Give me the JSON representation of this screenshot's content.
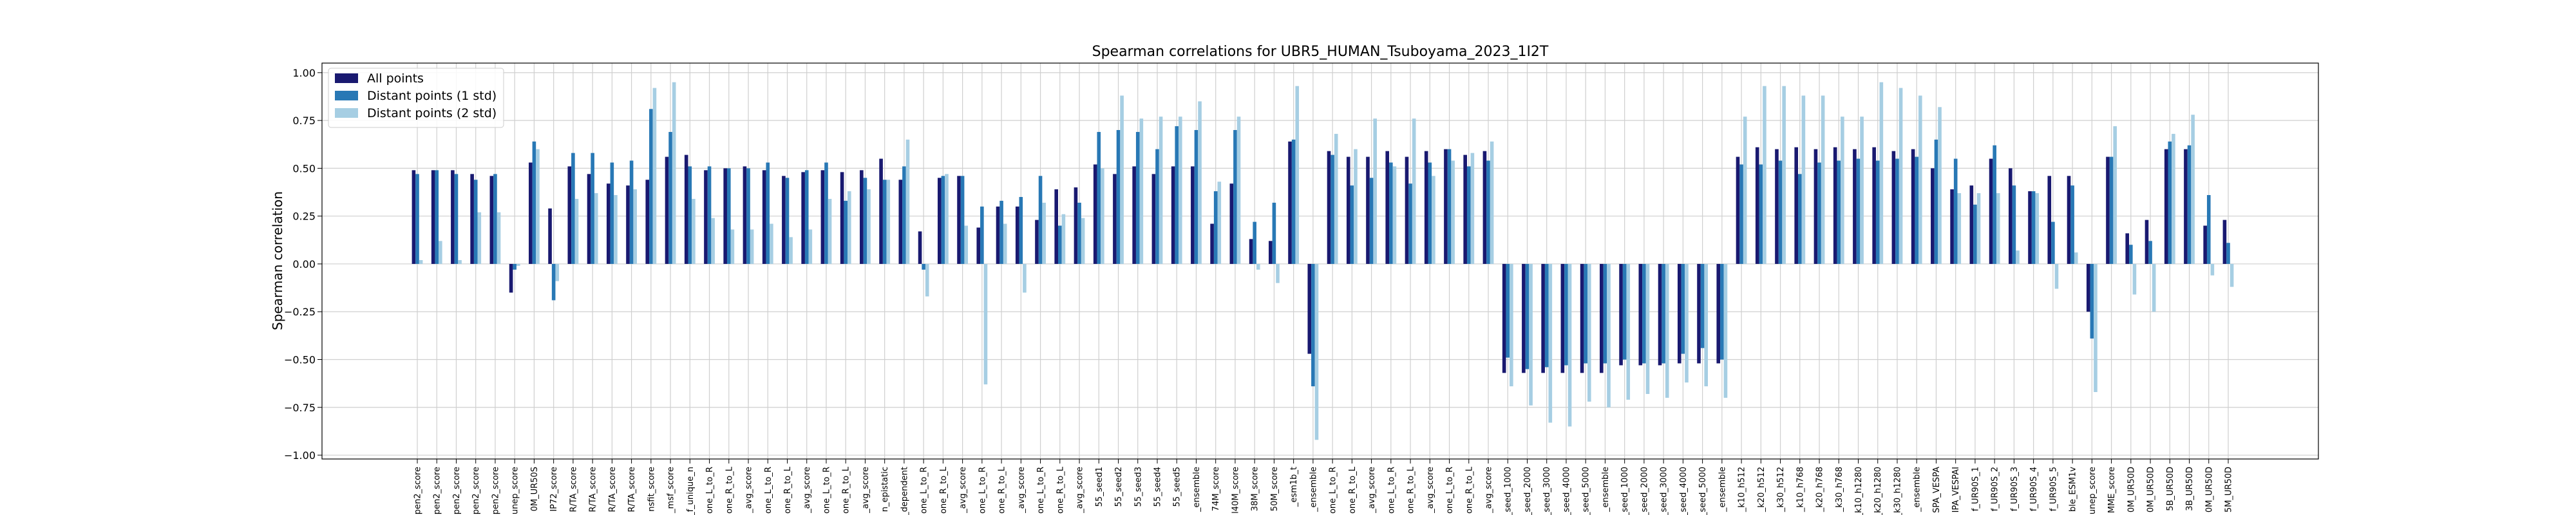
{
  "chart_data": {
    "type": "bar",
    "title": "Spearman correlations for UBR5_HUMAN_Tsuboyama_2023_1I2T",
    "xlabel": "",
    "ylabel": "Spearman correlation",
    "ylim": [
      -1.02,
      1.05
    ],
    "yticks": [
      -1.0,
      -0.75,
      -0.5,
      -0.25,
      0.0,
      0.25,
      0.5,
      0.75,
      1.0
    ],
    "ytick_labels": [
      "−1.00",
      "−0.75",
      "−0.50",
      "−0.25",
      "0.00",
      "0.25",
      "0.50",
      "0.75",
      "1.00"
    ],
    "grid": true,
    "legend_position": "top-left",
    "categories": [
      "pen2_score",
      "pen2_score",
      "pen2_score",
      "pen2_score",
      "pen2_score",
      "unep_score",
      "0M_UR50S",
      "IP72_score",
      "R/TA_score",
      "R/TA_score",
      "R/TA_score",
      "R/TA_score",
      "nsfit_score",
      "_msf_score",
      "_f_unique_n",
      "one_L_to_R",
      "one_R_to_L",
      "_avg_score",
      "one_L_to_R",
      "one_R_to_L",
      "_avg_score",
      "one_L_to_R",
      "one_R_to_L",
      "_avg_score",
      "n_epistatic",
      "_dependent",
      "one_L_to_R",
      "one_R_to_L",
      "_avg_score",
      "one_L_to_R",
      "one_R_to_L",
      "_avg_score",
      "one_L_to_R",
      "one_R_to_L",
      "_avg_score",
      "55_seed1",
      "55_seed2",
      "55_seed3",
      "55_seed4",
      "55_seed5",
      "_ensemble",
      "74M_score",
      "l40M_score",
      "38M_score",
      "50M_score",
      "_esm1b_t",
      "_ensemble",
      "one_L_to_R",
      "one_R_to_L",
      "_avg_score",
      "one_L_to_R",
      "one_R_to_L",
      "_avg_score",
      "one_L_to_R",
      "one_R_to_L",
      "_avg_score",
      "_seed_1000",
      "_seed_2000",
      "_seed_3000",
      "_seed_4000",
      "_seed_5000",
      "_ensemble",
      "_seed_1000",
      "_seed_2000",
      "_seed_3000",
      "_seed_4000",
      "_seed_5000",
      "_ensemble",
      "_k10_h512",
      "_k20_h512",
      "_k30_h512",
      "_k10_h768",
      "_k20_h768",
      "_k30_h768",
      "_k10_h1280",
      "_k20_h1280",
      "_k30_h1280",
      "_ensemble",
      "SPA_VESPA",
      "IPA_VESPAI",
      "f_UR90S_1",
      "f_UR90S_2",
      "f_UR90S_3",
      "f_UR90S_4",
      "f_UR90S_5",
      "ble_ESM1v",
      "unep_score",
      "MME_score",
      "0M_UR50D",
      "0M_UR50D",
      "5B_UR50D",
      "3B_UR50D",
      "0M_UR50D",
      "5M_UR50D"
    ],
    "series": [
      {
        "name": "All points",
        "color": "#191970",
        "values": [
          0.49,
          0.49,
          0.49,
          0.47,
          0.46,
          -0.15,
          0.53,
          0.29,
          0.51,
          0.47,
          0.42,
          0.41,
          0.44,
          0.56,
          0.57,
          0.49,
          0.5,
          0.51,
          0.49,
          0.46,
          0.48,
          0.49,
          0.48,
          0.49,
          0.55,
          0.44,
          0.17,
          0.45,
          0.46,
          0.19,
          0.3,
          0.3,
          0.23,
          0.39,
          0.4,
          0.52,
          0.47,
          0.51,
          0.47,
          0.51,
          0.51,
          0.21,
          0.42,
          0.13,
          0.12,
          0.64,
          -0.47,
          0.59,
          0.56,
          0.56,
          0.59,
          0.56,
          0.59,
          0.6,
          0.57,
          0.59,
          -0.57,
          -0.57,
          -0.57,
          -0.57,
          -0.57,
          -0.57,
          -0.53,
          -0.53,
          -0.53,
          -0.52,
          -0.52,
          -0.52,
          0.56,
          0.61,
          0.6,
          0.61,
          0.6,
          0.61,
          0.6,
          0.61,
          0.59,
          0.6,
          0.5,
          0.39,
          0.41,
          0.55,
          0.5,
          0.38,
          0.46,
          0.46,
          -0.25,
          0.56,
          0.16,
          0.23,
          0.6,
          0.6,
          0.2,
          0.23
        ]
      },
      {
        "name": "Distant points (1 std)",
        "color": "#2878b5",
        "values": [
          0.47,
          0.49,
          0.47,
          0.44,
          0.47,
          -0.03,
          0.64,
          -0.19,
          0.58,
          0.58,
          0.53,
          0.54,
          0.81,
          0.69,
          0.51,
          0.51,
          0.5,
          0.5,
          0.53,
          0.45,
          0.49,
          0.53,
          0.33,
          0.45,
          0.44,
          0.51,
          -0.03,
          0.46,
          0.46,
          0.3,
          0.33,
          0.35,
          0.46,
          0.2,
          0.32,
          0.69,
          0.7,
          0.69,
          0.6,
          0.72,
          0.7,
          0.38,
          0.7,
          0.22,
          0.32,
          0.65,
          -0.64,
          0.57,
          0.41,
          0.45,
          0.53,
          0.42,
          0.53,
          0.6,
          0.51,
          0.54,
          -0.49,
          -0.55,
          -0.54,
          -0.53,
          -0.52,
          -0.52,
          -0.5,
          -0.52,
          -0.52,
          -0.47,
          -0.44,
          -0.5,
          0.52,
          0.52,
          0.54,
          0.47,
          0.53,
          0.54,
          0.55,
          0.54,
          0.55,
          0.56,
          0.65,
          0.55,
          0.31,
          0.62,
          0.41,
          0.38,
          0.22,
          0.41,
          -0.39,
          0.56,
          0.1,
          0.12,
          0.64,
          0.62,
          0.36,
          0.11
        ]
      },
      {
        "name": "Distant points (2 std)",
        "color": "#a6cee3",
        "values": [
          0.02,
          0.12,
          0.02,
          0.27,
          0.27,
          -0.01,
          0.6,
          -0.09,
          0.34,
          0.37,
          0.36,
          0.39,
          0.92,
          0.95,
          0.34,
          0.24,
          0.18,
          0.18,
          0.21,
          0.14,
          0.18,
          0.34,
          0.38,
          0.39,
          0.44,
          0.65,
          -0.17,
          0.47,
          0.2,
          -0.63,
          0.21,
          -0.15,
          0.32,
          0.26,
          0.24,
          0.5,
          0.88,
          0.76,
          0.77,
          0.77,
          0.85,
          0.43,
          0.77,
          -0.03,
          -0.1,
          0.93,
          -0.92,
          0.68,
          0.6,
          0.76,
          0.51,
          0.76,
          0.46,
          0.54,
          0.58,
          0.64,
          -0.64,
          -0.74,
          -0.83,
          -0.85,
          -0.72,
          -0.75,
          -0.71,
          -0.68,
          -0.7,
          -0.62,
          -0.64,
          -0.7,
          0.77,
          0.93,
          0.93,
          0.88,
          0.88,
          0.77,
          0.77,
          0.95,
          0.92,
          0.88,
          0.82,
          0.37,
          0.37,
          0.37,
          0.07,
          0.37,
          -0.13,
          0.06,
          -0.67,
          0.72,
          -0.16,
          -0.25,
          0.68,
          0.78,
          -0.06,
          -0.12
        ]
      }
    ]
  }
}
